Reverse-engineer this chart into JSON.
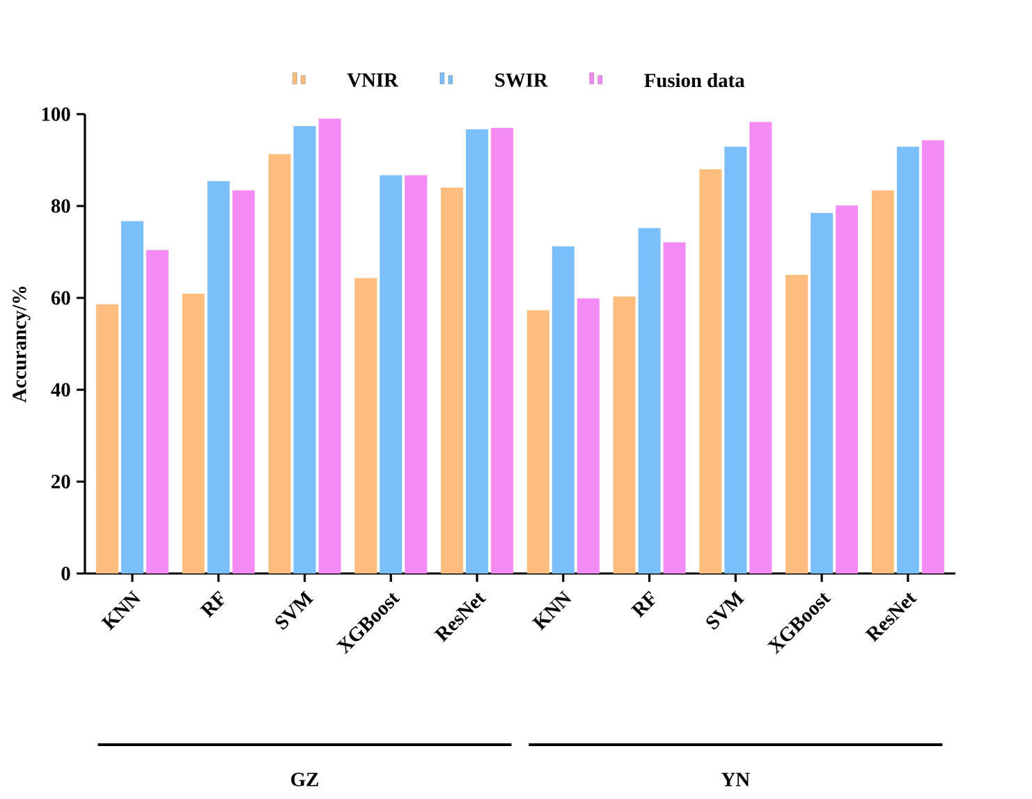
{
  "chart_data": {
    "type": "bar",
    "ylabel": "Accurancy/%",
    "categories": [
      "KNN",
      "RF",
      "SVM",
      "XGBoost",
      "ResNet",
      "KNN",
      "RF",
      "SVM",
      "XGBoost",
      "ResNet"
    ],
    "series": [
      {
        "name": "VNIR",
        "color": "#fdbd7c",
        "values": [
          58.6,
          60.9,
          91.3,
          64.3,
          84.0,
          57.3,
          60.3,
          88.0,
          65.0,
          83.4
        ]
      },
      {
        "name": "SWIR",
        "color": "#7abefa",
        "values": [
          76.7,
          85.4,
          97.4,
          86.7,
          96.7,
          71.2,
          75.2,
          92.9,
          78.5,
          92.9
        ]
      },
      {
        "name": "Fusion data",
        "color": "#f48af4",
        "values": [
          70.4,
          83.4,
          99.0,
          86.7,
          97.0,
          59.9,
          72.1,
          98.3,
          80.1,
          94.3
        ]
      }
    ],
    "ylim": [
      0,
      100
    ],
    "yticks": [
      0,
      20,
      40,
      60,
      80,
      100
    ],
    "legend": "top",
    "grid": false,
    "annotations": [
      "GZ",
      "YN"
    ]
  }
}
